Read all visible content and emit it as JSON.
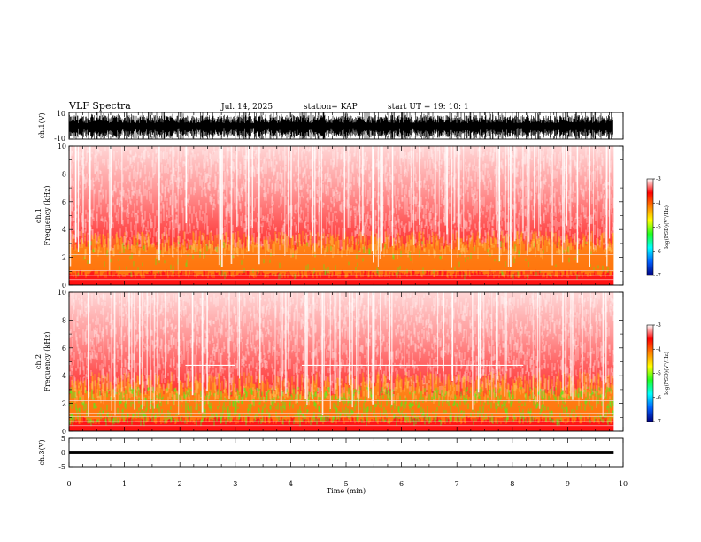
{
  "header": {
    "title": "VLF Spectra",
    "date": "Jul. 14, 2025",
    "station": "station= KAP",
    "start": "start UT =  19: 10: 1"
  },
  "chart_data": [
    {
      "type": "line",
      "name": "ch1-waveform",
      "ylabel": "ch.1(V)",
      "ylim": [
        -10,
        10
      ],
      "ytick_labels": [
        "10",
        "-10"
      ],
      "xlim": [
        0,
        10
      ]
    },
    {
      "type": "heatmap",
      "name": "ch1-spectrogram",
      "ylabel": "ch.1\nFrequency (kHz)",
      "ylabel_lines": [
        "ch.1",
        "Frequency (kHz)"
      ],
      "ylim": [
        0,
        10
      ],
      "yticks": [
        0,
        2,
        4,
        6,
        8,
        10
      ],
      "ytick_labels": [
        "0",
        "2",
        "4",
        "6",
        "8",
        "10"
      ],
      "xlim": [
        0,
        10
      ],
      "data_extent_min": 9.83,
      "colorbar": {
        "label": "log(PSD)(V²/Hz)",
        "range": [
          -7,
          -3
        ],
        "tick_labels": [
          "-3",
          "-4",
          "-5",
          "-6",
          "-7"
        ],
        "colors": [
          "#000080",
          "#0060ff",
          "#00ffff",
          "#20ff20",
          "#ffff00",
          "#ff8000",
          "#ff0000",
          "#ffffff"
        ]
      }
    },
    {
      "type": "heatmap",
      "name": "ch2-spectrogram",
      "ylabel": "ch.2\nFrequency (kHz)",
      "ylabel_lines": [
        "ch.2",
        "Frequency (kHz)"
      ],
      "ylim": [
        0,
        10
      ],
      "yticks": [
        0,
        2,
        4,
        6,
        8,
        10
      ],
      "ytick_labels": [
        "0",
        "2",
        "4",
        "6",
        "8",
        "10"
      ],
      "xlim": [
        0,
        10
      ],
      "data_extent_min": 9.83,
      "colorbar": {
        "label": "log(PSD)(V²/Hz)",
        "range": [
          -7,
          -3
        ],
        "tick_labels": [
          "-3",
          "-4",
          "-5",
          "-6",
          "-7"
        ],
        "colors": [
          "#000080",
          "#0060ff",
          "#00ffff",
          "#20ff20",
          "#ffff00",
          "#ff8000",
          "#ff0000",
          "#ffffff"
        ]
      }
    },
    {
      "type": "line",
      "name": "ch3-waveform",
      "ylabel": "ch.3(V)",
      "ylim": [
        -5,
        5
      ],
      "ytick_labels": [
        "5",
        "0",
        "-5"
      ],
      "xlim": [
        0,
        10
      ]
    }
  ],
  "xaxis": {
    "label": "Time (min)",
    "ticks": [
      0,
      1,
      2,
      3,
      4,
      5,
      6,
      7,
      8,
      9,
      10
    ],
    "tick_labels": [
      "0",
      "1",
      "2",
      "3",
      "4",
      "5",
      "6",
      "7",
      "8",
      "9",
      "10"
    ]
  }
}
